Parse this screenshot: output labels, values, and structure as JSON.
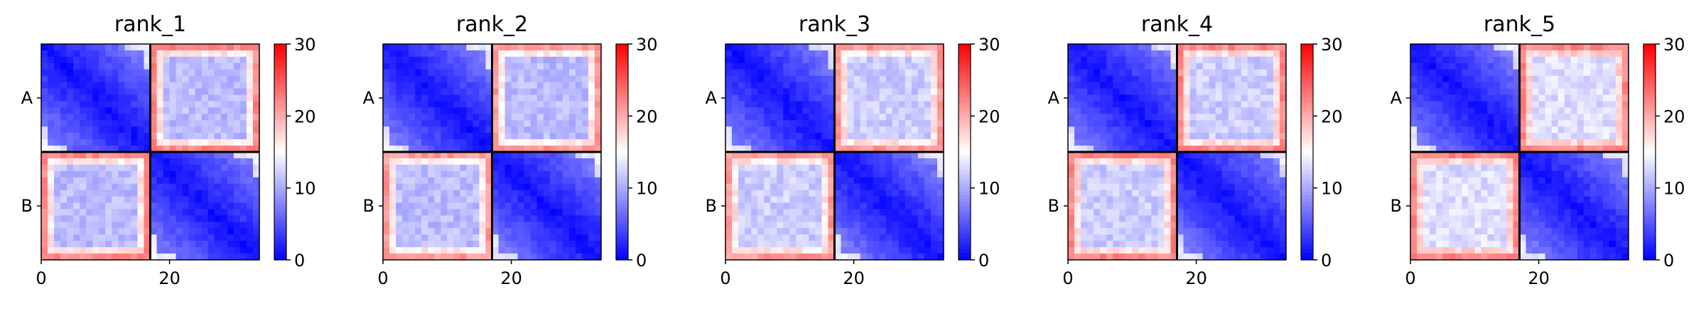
{
  "chart_data": [
    {
      "type": "heatmap",
      "title": "rank_1",
      "n": 34,
      "split": 17,
      "yticklabels": [
        "A",
        "B"
      ],
      "xticks": [
        0,
        20
      ],
      "xlim": [
        0,
        34
      ],
      "colorbar": {
        "ticks": [
          0,
          10,
          20,
          30
        ],
        "range": [
          0,
          30
        ]
      },
      "within_block_trend": "blue near diagonal, lighter far from diagonal",
      "off_block_level": 11,
      "edge_level": 22
    },
    {
      "type": "heatmap",
      "title": "rank_2",
      "n": 34,
      "split": 17,
      "yticklabels": [
        "A",
        "B"
      ],
      "xticks": [
        0,
        20
      ],
      "xlim": [
        0,
        34
      ],
      "colorbar": {
        "ticks": [
          0,
          10,
          20,
          30
        ],
        "range": [
          0,
          30
        ]
      },
      "within_block_trend": "blue near diagonal, lighter far from diagonal",
      "off_block_level": 11,
      "edge_level": 21
    },
    {
      "type": "heatmap",
      "title": "rank_3",
      "n": 34,
      "split": 17,
      "yticklabels": [
        "A",
        "B"
      ],
      "xticks": [
        0,
        20
      ],
      "xlim": [
        0,
        34
      ],
      "colorbar": {
        "ticks": [
          0,
          10,
          20,
          30
        ],
        "range": [
          0,
          30
        ]
      },
      "within_block_trend": "blue near diagonal, lighter far from diagonal",
      "off_block_level": 12,
      "edge_level": 21
    },
    {
      "type": "heatmap",
      "title": "rank_4",
      "n": 34,
      "split": 17,
      "yticklabels": [
        "A",
        "B"
      ],
      "xticks": [
        0,
        20
      ],
      "xlim": [
        0,
        34
      ],
      "colorbar": {
        "ticks": [
          0,
          10,
          20,
          30
        ],
        "range": [
          0,
          30
        ]
      },
      "within_block_trend": "blue near diagonal, lighter far from diagonal",
      "off_block_level": 12,
      "edge_level": 22
    },
    {
      "type": "heatmap",
      "title": "rank_5",
      "n": 34,
      "split": 17,
      "yticklabels": [
        "A",
        "B"
      ],
      "xticks": [
        0,
        20
      ],
      "xlim": [
        0,
        34
      ],
      "colorbar": {
        "ticks": [
          0,
          10,
          20,
          30
        ],
        "range": [
          0,
          30
        ]
      },
      "within_block_trend": "blue near diagonal, lighter far from diagonal",
      "off_block_level": 13,
      "edge_level": 22
    }
  ],
  "colormap": {
    "name": "bwr",
    "low": "#0000ff",
    "mid": "#ffffff",
    "high": "#ff0000"
  }
}
